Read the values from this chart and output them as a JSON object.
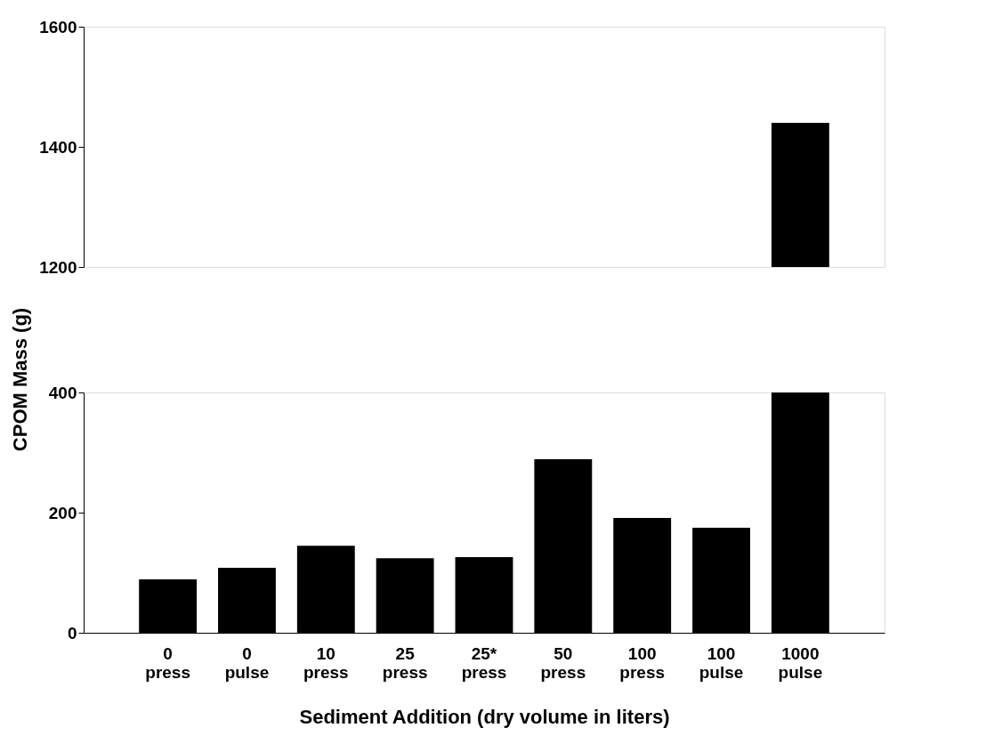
{
  "chart_data": [
    {
      "type": "bar",
      "categories": [
        null,
        null,
        null,
        null,
        null,
        null,
        null,
        null,
        null
      ],
      "values": [
        null,
        null,
        null,
        null,
        null,
        null,
        null,
        null,
        240
      ],
      "base": [
        null,
        null,
        null,
        null,
        null,
        null,
        null,
        null,
        1200
      ],
      "colors": [
        "#000000",
        "#000000",
        "#000000",
        "#000000",
        "#000000",
        "#000000",
        "#000000",
        "#000000",
        "#000000"
      ],
      "ylim": [
        1200,
        1600
      ],
      "yticks": [
        1200,
        1400,
        1600
      ],
      "tick_labels": "y",
      "grid": false
    },
    {
      "type": "bar",
      "categories": [
        "0\npress",
        "0\npulse",
        "10\npress",
        "25\npress",
        "25*\npress",
        "50\npress",
        "100\npress",
        "100\npulse",
        "1000\npulse"
      ],
      "values": [
        89,
        108,
        145,
        124,
        126,
        289,
        191,
        175,
        400
      ],
      "colors": [
        "#000000",
        "#000000",
        "#000000",
        "#000000",
        "#000000",
        "#000000",
        "#000000",
        "#000000",
        "#000000"
      ],
      "ylim": [
        0,
        400
      ],
      "yticks": [
        0,
        200,
        400
      ],
      "xlabel": "Sediment Addition (dry volume in liters)",
      "ylabel": "CPOM Mass (g)",
      "grid": false
    }
  ]
}
